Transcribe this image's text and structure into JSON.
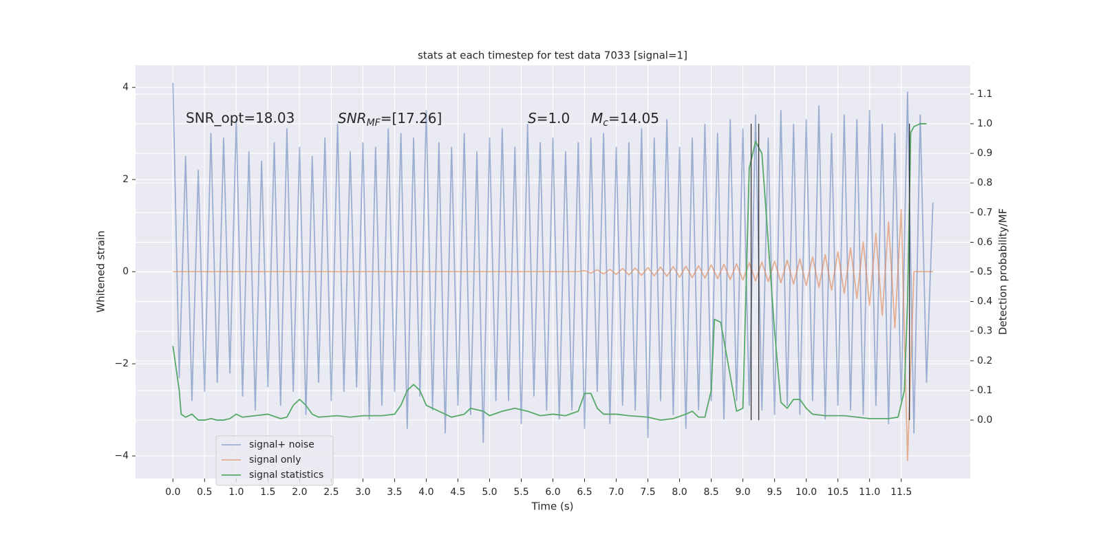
{
  "chart_data": {
    "type": "line",
    "title": "stats at each timestep for test data 7033 [signal=1]",
    "x_label": "Time (s)",
    "y_label": "Whitened strain",
    "y2_label": "Detection probability/MF",
    "xlim": [
      -0.59,
      12.59
    ],
    "ylim": [
      -4.49,
      4.48
    ],
    "y2lim": [
      -0.197,
      1.197
    ],
    "xticks": [
      {
        "value": 0,
        "label": "0.0"
      },
      0.5,
      {
        "value": 1,
        "label": "1.0"
      },
      1.5,
      {
        "value": 2,
        "label": "2.0"
      },
      2.5,
      {
        "value": 3,
        "label": "3.0"
      },
      3.5,
      {
        "value": 4,
        "label": "4.0"
      },
      4.5,
      {
        "value": 5,
        "label": "5.0"
      },
      5.5,
      {
        "value": 6,
        "label": "6.0"
      },
      6.5,
      {
        "value": 7,
        "label": "7.0"
      },
      7.5,
      {
        "value": 8,
        "label": "8.0"
      },
      8.5,
      {
        "value": 9,
        "label": "9.0"
      },
      9.5,
      {
        "value": 10,
        "label": "10.0"
      },
      10.5,
      {
        "value": 11,
        "label": "11.0"
      },
      11.5
    ],
    "yticks": [
      {
        "value": -4,
        "label": "−4"
      },
      {
        "value": -2,
        "label": "−2"
      },
      0,
      2,
      4
    ],
    "y2ticks": [
      {
        "value": 0,
        "label": "0.0"
      },
      0.1,
      0.2,
      0.3,
      0.4,
      0.5,
      0.6,
      0.7,
      0.8,
      0.9,
      {
        "value": 1,
        "label": "1.0"
      },
      1.1
    ],
    "grid": true,
    "legend": "lower left",
    "x": [
      0,
      0.1,
      0.2,
      0.3,
      0.4,
      0.5,
      0.6,
      0.7,
      0.8,
      0.9,
      1,
      1.1,
      1.2,
      1.3,
      1.4,
      1.5,
      1.6,
      1.7,
      1.8,
      1.9,
      2,
      2.1,
      2.2,
      2.3,
      2.4,
      2.5,
      2.6,
      2.7,
      2.8,
      2.9,
      3,
      3.1,
      3.2,
      3.3,
      3.4,
      3.5,
      3.6,
      3.7,
      3.8,
      3.9,
      4,
      4.1,
      4.2,
      4.3,
      4.4,
      4.5,
      4.6,
      4.7,
      4.8,
      4.9,
      5,
      5.1,
      5.2,
      5.3,
      5.4,
      5.5,
      5.6,
      5.7,
      5.8,
      5.9,
      6,
      6.1,
      6.2,
      6.3,
      6.4,
      6.5,
      6.6,
      6.7,
      6.8,
      6.9,
      7,
      7.1,
      7.2,
      7.3,
      7.4,
      7.5,
      7.6,
      7.7,
      7.8,
      7.9,
      8,
      8.1,
      8.2,
      8.3,
      8.4,
      8.5,
      8.6,
      8.7,
      8.8,
      8.9,
      9,
      9.1,
      9.2,
      9.3,
      9.4,
      9.5,
      9.6,
      9.7,
      9.8,
      9.9,
      10,
      10.1,
      10.2,
      10.3,
      10.4,
      10.5,
      10.6,
      10.7,
      10.8,
      10.9,
      11,
      11.1,
      11.2,
      11.3,
      11.4,
      11.5,
      11.6,
      11.7,
      11.8,
      11.9,
      12
    ],
    "series": [
      {
        "name": "signal+ noise",
        "color": "#4c72b0",
        "opacity": 0.5,
        "values": [
          4.1,
          -2.3,
          2.5,
          -2.8,
          2.2,
          -2.6,
          3.0,
          -2.4,
          2.9,
          -2.2,
          3.3,
          -2.7,
          2.6,
          -3.0,
          2.4,
          -2.5,
          2.8,
          -2.9,
          3.1,
          -2.6,
          2.7,
          -3.1,
          2.5,
          -2.4,
          2.9,
          -2.8,
          3.2,
          -2.6,
          2.6,
          -2.5,
          2.8,
          -3.2,
          2.7,
          -2.9,
          3.1,
          -2.6,
          3.0,
          -3.4,
          2.9,
          -2.7,
          3.5,
          -3.0,
          2.8,
          -3.5,
          2.7,
          -2.9,
          3.0,
          -3.1,
          2.6,
          -3.7,
          2.9,
          -2.8,
          3.1,
          -2.8,
          2.7,
          -3.3,
          3.2,
          -2.7,
          2.8,
          -3.0,
          2.9,
          -3.2,
          2.6,
          -3.0,
          2.8,
          -3.4,
          2.9,
          -2.6,
          3.0,
          -3.3,
          2.7,
          -2.9,
          2.8,
          -3.0,
          3.1,
          -3.6,
          2.9,
          -2.8,
          3.3,
          -3.1,
          2.7,
          -3.4,
          2.9,
          -3.0,
          3.2,
          -2.8,
          3.0,
          -3.2,
          3.3,
          -2.8,
          3.1,
          -2.9,
          3.4,
          -3.0,
          2.9,
          -3.1,
          3.5,
          -2.9,
          3.2,
          -3.1,
          3.3,
          -2.8,
          3.6,
          -3.2,
          3.0,
          -2.9,
          3.4,
          -3.0,
          3.3,
          -3.1,
          3.5,
          -2.9,
          3.2,
          -3.3,
          3.0,
          -2.8,
          3.9,
          -3.5,
          3.4,
          -2.4,
          1.5
        ]
      },
      {
        "name": "signal only",
        "color": "#dd8452",
        "opacity": 0.6,
        "values": [
          0,
          0,
          0,
          0,
          0,
          0,
          0,
          0,
          0,
          0,
          0,
          0,
          0,
          0,
          0,
          0,
          0,
          0,
          0,
          0,
          0,
          0,
          0,
          0,
          0,
          0,
          0,
          0,
          0,
          0,
          0,
          0,
          0,
          0,
          0,
          0,
          0,
          0,
          0,
          0,
          0,
          0,
          0,
          0,
          0,
          0,
          0,
          0,
          0,
          0,
          0,
          0,
          0,
          0,
          0,
          0,
          0,
          0,
          0,
          0,
          0,
          0,
          0,
          0,
          0,
          0.02,
          -0.03,
          0.04,
          -0.05,
          0.05,
          -0.06,
          0.07,
          -0.07,
          0.08,
          -0.08,
          0.09,
          -0.09,
          0.1,
          -0.1,
          0.11,
          -0.12,
          0.12,
          -0.13,
          0.13,
          -0.14,
          0.15,
          -0.15,
          0.16,
          -0.17,
          0.17,
          -0.18,
          0.19,
          -0.2,
          0.21,
          -0.22,
          0.23,
          -0.24,
          0.25,
          -0.27,
          0.28,
          -0.3,
          0.32,
          -0.34,
          0.37,
          -0.4,
          0.43,
          -0.47,
          0.52,
          -0.58,
          0.65,
          -0.73,
          0.83,
          -0.95,
          1.08,
          -1.22,
          1.35,
          -4.1,
          0,
          0,
          0,
          0
        ]
      },
      {
        "name": "signal statistics",
        "color": "#55a868",
        "opacity": 1,
        "axis": "y2",
        "x": [
          0,
          0.1,
          0.13,
          0.2,
          0.3,
          0.4,
          0.5,
          0.6,
          0.7,
          0.8,
          0.9,
          1.0,
          1.1,
          1.3,
          1.5,
          1.7,
          1.8,
          1.9,
          2.0,
          2.1,
          2.2,
          2.3,
          2.6,
          2.8,
          3.0,
          3.3,
          3.5,
          3.6,
          3.7,
          3.8,
          3.9,
          4.0,
          4.2,
          4.4,
          4.6,
          4.7,
          4.9,
          5.0,
          5.2,
          5.4,
          5.6,
          5.8,
          6.0,
          6.2,
          6.4,
          6.5,
          6.6,
          6.7,
          6.8,
          7.0,
          7.2,
          7.5,
          7.7,
          7.9,
          8.1,
          8.2,
          8.3,
          8.4,
          8.5,
          8.55,
          8.65,
          8.8,
          8.9,
          9.0,
          9.1,
          9.2,
          9.3,
          9.4,
          9.5,
          9.6,
          9.7,
          9.8,
          9.9,
          10.0,
          10.1,
          10.3,
          10.6,
          11.0,
          11.3,
          11.45,
          11.55,
          11.6,
          11.65,
          11.7,
          11.8,
          11.9
        ],
        "values": [
          0.25,
          0.1,
          0.02,
          0.01,
          0.02,
          0.0,
          0.0,
          0.005,
          0.0,
          0.0,
          0.005,
          0.02,
          0.01,
          0.015,
          0.02,
          0.005,
          0.01,
          0.05,
          0.07,
          0.05,
          0.02,
          0.01,
          0.015,
          0.01,
          0.015,
          0.015,
          0.02,
          0.05,
          0.1,
          0.12,
          0.1,
          0.05,
          0.03,
          0.01,
          0.02,
          0.04,
          0.03,
          0.015,
          0.03,
          0.04,
          0.03,
          0.015,
          0.02,
          0.015,
          0.03,
          0.09,
          0.09,
          0.04,
          0.02,
          0.02,
          0.015,
          0.01,
          0.0,
          0.005,
          0.02,
          0.03,
          0.01,
          0.01,
          0.1,
          0.34,
          0.33,
          0.15,
          0.03,
          0.04,
          0.85,
          0.94,
          0.9,
          0.6,
          0.3,
          0.06,
          0.04,
          0.07,
          0.07,
          0.04,
          0.02,
          0.015,
          0.015,
          0.005,
          0.005,
          0.01,
          0.1,
          0.4,
          0.97,
          0.99,
          1.0,
          1.0
        ]
      }
    ],
    "vlines": {
      "x": [
        9.13,
        9.25,
        11.63
      ],
      "ymin": 0,
      "ymax": 1.0,
      "axis": "y2",
      "color": "#333333"
    },
    "annotations": [
      {
        "text": "SNR_opt=18.03"
      },
      {
        "base": "SNR",
        "sub": "MF",
        "rest": "=[17.26]"
      },
      {
        "base": "S",
        "rest": "=1.0"
      },
      {
        "base": "M",
        "sub": "c",
        "rest": "=14.05"
      }
    ]
  }
}
